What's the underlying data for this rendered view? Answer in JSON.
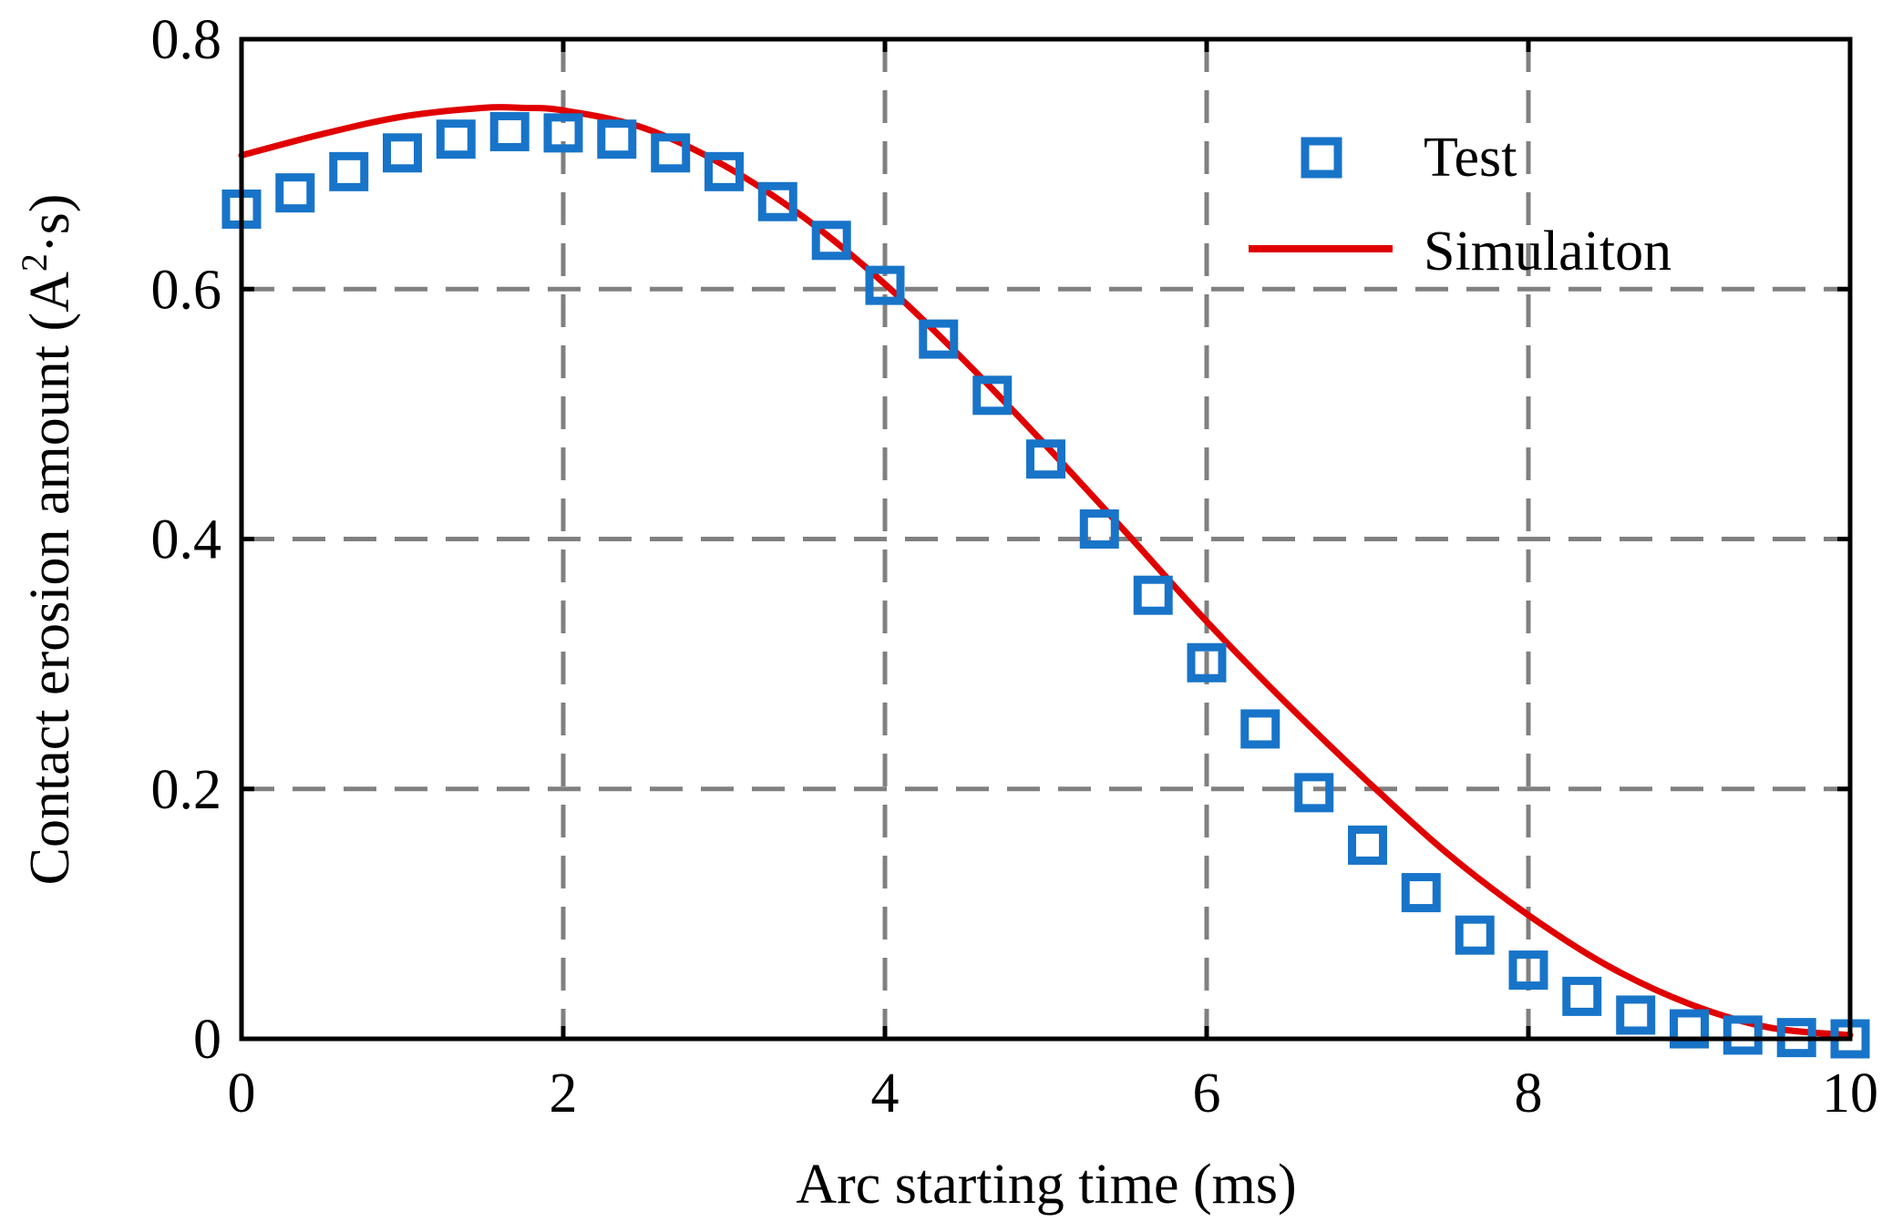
{
  "colors": {
    "test": "#1874c8",
    "simulation": "#e00000",
    "grid": "#808080",
    "axis": "#000000"
  },
  "chart_data": {
    "type": "scatter+line",
    "title": "",
    "xlabel": "Arc starting time (ms)",
    "ylabel_main": "Contact erosion amount (A",
    "ylabel_sup": "2",
    "ylabel_tail": "·s)",
    "xlim": [
      0,
      10
    ],
    "ylim": [
      0,
      0.8
    ],
    "xticks": [
      0,
      2,
      4,
      6,
      8,
      10
    ],
    "xtick_labels": [
      "0",
      "2",
      "4",
      "6",
      "8",
      "10"
    ],
    "yticks": [
      0,
      0.2,
      0.4,
      0.6,
      0.8
    ],
    "ytick_labels": [
      "0",
      "0.2",
      "0.4",
      "0.6",
      "0.8"
    ],
    "grid": true,
    "legend_position": "top-right",
    "series": [
      {
        "name": "Test",
        "kind": "markers",
        "marker": "square-open",
        "x": [
          0,
          0.333,
          0.667,
          1.0,
          1.333,
          1.667,
          2.0,
          2.333,
          2.667,
          3.0,
          3.333,
          3.667,
          4.0,
          4.333,
          4.667,
          5.0,
          5.333,
          5.667,
          6.0,
          6.333,
          6.667,
          7.0,
          7.333,
          7.667,
          8.0,
          8.333,
          8.667,
          9.0,
          9.333,
          9.667,
          10.0
        ],
        "y": [
          0.664,
          0.677,
          0.694,
          0.709,
          0.72,
          0.726,
          0.725,
          0.72,
          0.709,
          0.694,
          0.67,
          0.639,
          0.603,
          0.56,
          0.515,
          0.464,
          0.408,
          0.355,
          0.301,
          0.248,
          0.197,
          0.155,
          0.117,
          0.083,
          0.055,
          0.034,
          0.019,
          0.008,
          0.003,
          0.001,
          0.0
        ]
      },
      {
        "name": "Simulaiton",
        "kind": "line",
        "x": [
          0,
          0.5,
          1.0,
          1.5,
          1.75,
          2.0,
          2.5,
          3.0,
          3.5,
          4.0,
          4.5,
          5.0,
          5.5,
          6.0,
          6.5,
          7.0,
          7.5,
          8.0,
          8.5,
          9.0,
          9.5,
          10.0
        ],
        "y": [
          0.707,
          0.724,
          0.738,
          0.745,
          0.745,
          0.743,
          0.729,
          0.699,
          0.657,
          0.604,
          0.542,
          0.475,
          0.405,
          0.334,
          0.268,
          0.206,
          0.148,
          0.099,
          0.058,
          0.028,
          0.009,
          0.003
        ]
      }
    ]
  }
}
